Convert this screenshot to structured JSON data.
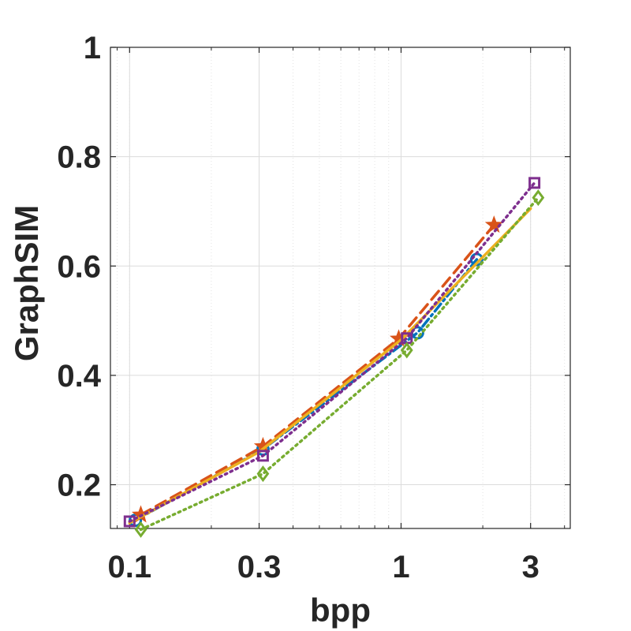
{
  "chart_data": {
    "type": "line",
    "title": "",
    "xlabel": "bpp",
    "ylabel": "GraphSIM",
    "xscale": "log",
    "xlim": [
      0.085,
      4.2
    ],
    "ylim": [
      0.12,
      1.0
    ],
    "xticks": [
      {
        "value": 0.1,
        "label": "0.1"
      },
      {
        "value": 0.3,
        "label": "0.3"
      },
      {
        "value": 1,
        "label": "1"
      },
      {
        "value": 3,
        "label": "3"
      }
    ],
    "yticks": [
      {
        "value": 0.2,
        "label": "0.2"
      },
      {
        "value": 0.4,
        "label": "0.4"
      },
      {
        "value": 0.6,
        "label": "0.6"
      },
      {
        "value": 0.8,
        "label": "0.8"
      },
      {
        "value": 1.0,
        "label": "1"
      }
    ],
    "grid": true,
    "minor_grid": true,
    "legend": "none",
    "series": [
      {
        "color": "#0072BD",
        "line_style": "dashdot",
        "marker": "circle",
        "x": [
          0.105,
          0.31,
          1.15,
          1.9
        ],
        "y": [
          0.135,
          0.265,
          0.478,
          0.612
        ]
      },
      {
        "color": "#D95319",
        "line_style": "dashed",
        "marker": "star",
        "x": [
          0.11,
          0.31,
          0.98,
          2.2
        ],
        "y": [
          0.145,
          0.27,
          0.467,
          0.675
        ]
      },
      {
        "color": "#EDB120",
        "line_style": "solid",
        "marker": "none",
        "x": [
          0.1,
          0.3,
          1.0,
          3.0
        ],
        "y": [
          0.13,
          0.26,
          0.465,
          0.705
        ]
      },
      {
        "color": "#7E2F8E",
        "line_style": "dotted",
        "marker": "square",
        "x": [
          0.1,
          0.31,
          1.05,
          3.1
        ],
        "y": [
          0.133,
          0.253,
          0.468,
          0.752
        ]
      },
      {
        "color": "#77AC30",
        "line_style": "dotted",
        "marker": "diamond",
        "x": [
          0.11,
          0.31,
          1.05,
          3.2
        ],
        "y": [
          0.118,
          0.22,
          0.446,
          0.725
        ]
      }
    ]
  }
}
